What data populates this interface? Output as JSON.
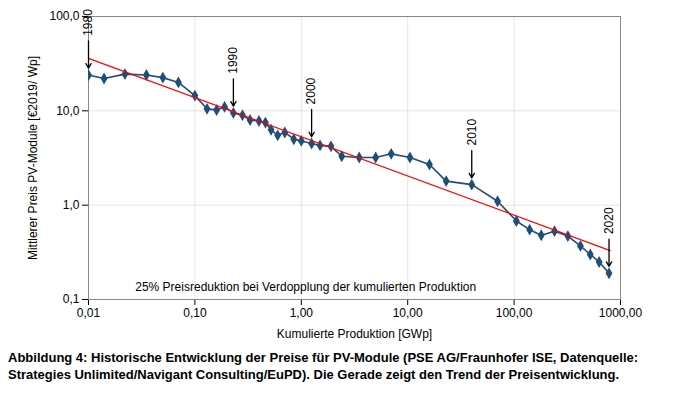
{
  "chart_data": {
    "type": "line",
    "caption": "Abbildung 4: Historische Entwicklung der Preise für PV-Module (PSE AG/Fraunhofer ISE, Datenquelle: Strategies Unlimited/Navigant Consulting/EuPD). Die Gerade zeigt den Trend der Preisentwicklung.",
    "x_label": "Kumulierte Produktion [GWp]",
    "y_label": "Mittlerer Preis PV-Module [€2019/ Wp]",
    "log": true,
    "grid": true,
    "xlim": [
      0.01,
      1000
    ],
    "ylim": [
      0.1,
      100
    ],
    "xticks": [
      {
        "value": 0.01,
        "label": "0,01"
      },
      {
        "value": 0.1,
        "label": "0,10"
      },
      {
        "value": 1,
        "label": "1,00"
      },
      {
        "value": 10,
        "label": "10,00"
      },
      {
        "value": 100,
        "label": "100,00"
      },
      {
        "value": 1000,
        "label": "1000,00"
      }
    ],
    "yticks": [
      {
        "value": 0.1,
        "label": "0,1"
      },
      {
        "value": 1,
        "label": "1,0"
      },
      {
        "value": 10,
        "label": "10,0"
      },
      {
        "value": 100,
        "label": "100,0"
      }
    ],
    "series": [
      {
        "color": "#1f4e79",
        "marker": "diamond",
        "line_style": "solid",
        "x": [
          0.01,
          0.014,
          0.022,
          0.035,
          0.05,
          0.07,
          0.1,
          0.13,
          0.16,
          0.19,
          0.23,
          0.28,
          0.33,
          0.4,
          0.46,
          0.52,
          0.6,
          0.7,
          0.85,
          1.0,
          1.25,
          1.5,
          1.9,
          2.4,
          3.5,
          5.0,
          7.0,
          10.5,
          16,
          23,
          40,
          70,
          105,
          140,
          180,
          240,
          320,
          420,
          520,
          630,
          780
        ],
        "values": [
          24,
          22,
          24.5,
          24,
          22.5,
          20,
          14.5,
          10.5,
          10.2,
          11,
          9.5,
          9,
          8,
          7.8,
          7.5,
          6.3,
          5.5,
          5.9,
          5,
          4.8,
          4.5,
          4.3,
          4.2,
          3.3,
          3.2,
          3.2,
          3.5,
          3.2,
          2.7,
          1.8,
          1.65,
          1.1,
          0.68,
          0.55,
          0.48,
          0.53,
          0.47,
          0.37,
          0.3,
          0.25,
          0.19
        ]
      },
      {
        "color": "#ff0000",
        "line_style": "solid",
        "x": [
          0.01,
          800
        ],
        "values": [
          36,
          0.33
        ]
      }
    ],
    "annotations": [
      {
        "text": "1980",
        "x": 0.01,
        "y": 24,
        "arrow": true
      },
      {
        "text": "1990",
        "x": 0.23,
        "y": 9.5,
        "arrow": true
      },
      {
        "text": "2000",
        "x": 1.25,
        "y": 4.5,
        "arrow": true
      },
      {
        "text": "2010",
        "x": 40,
        "y": 1.65,
        "arrow": true
      },
      {
        "text": "2020",
        "x": 780,
        "y": 0.19,
        "arrow": true
      },
      {
        "text": "25% Preisreduktion bei Verdopplung der kumulierten Produktion",
        "x": 1.1,
        "y": 0.135,
        "arrow": false
      }
    ]
  }
}
